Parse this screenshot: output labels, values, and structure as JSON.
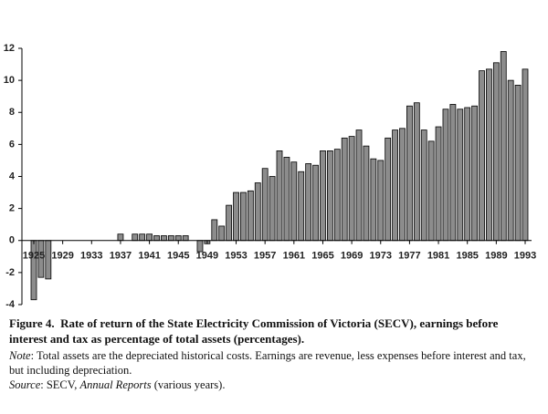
{
  "chart_data": {
    "type": "bar",
    "categories": [
      "1925",
      null,
      null,
      null,
      "1929",
      null,
      null,
      null,
      "1933",
      null,
      null,
      null,
      "1937",
      null,
      null,
      null,
      "1941",
      null,
      null,
      null,
      "1945",
      null,
      null,
      null,
      "1949",
      null,
      null,
      null,
      "1953",
      null,
      null,
      null,
      "1957",
      null,
      null,
      null,
      "1961",
      null,
      null,
      null,
      "1965",
      null,
      null,
      null,
      "1969",
      null,
      null,
      null,
      "1973",
      null,
      null,
      null,
      "1977",
      null,
      null,
      null,
      "1981",
      null,
      null,
      null,
      "1985",
      null,
      null,
      null,
      "1989",
      null,
      null,
      null,
      "1993"
    ],
    "values": [
      -3.7,
      -2.3,
      -2.4,
      0,
      0,
      0,
      0,
      0,
      0,
      0,
      0,
      0,
      0.4,
      0,
      0.4,
      0.4,
      0.4,
      0.3,
      0.3,
      0.3,
      0.3,
      0.3,
      0,
      -0.7,
      -0.2,
      1.3,
      0.9,
      2.2,
      3.0,
      3.0,
      3.1,
      3.6,
      4.5,
      4.0,
      5.6,
      5.2,
      4.9,
      4.3,
      4.8,
      4.7,
      5.6,
      5.6,
      5.7,
      6.4,
      6.5,
      6.9,
      5.9,
      5.1,
      5.0,
      6.4,
      6.9,
      7.0,
      8.4,
      8.6,
      6.9,
      6.2,
      7.1,
      8.2,
      8.5,
      8.2,
      8.3,
      8.4,
      10.6,
      10.7,
      11.1,
      11.8,
      10.0,
      9.7,
      10.7
    ],
    "color": "#8c8c8c",
    "ylim": [
      -4,
      12
    ],
    "yticks": [
      -4,
      -2,
      0,
      2,
      4,
      6,
      8,
      10,
      12
    ]
  },
  "caption": {
    "label": "Figure 4.",
    "title": "Rate of return of the State Electricity Commission of Victoria (SECV), earnings before interest and tax as percentage of total assets (percentages).",
    "note_label": "Note",
    "note": ": Total assets are the depreciated historical costs. Earnings are revenue, less expenses before interest and tax, but including depreciation.",
    "source_label": "Source",
    "source_pre": ":  SECV, ",
    "source_italic": "Annual Reports",
    "source_post": " (various years)."
  }
}
